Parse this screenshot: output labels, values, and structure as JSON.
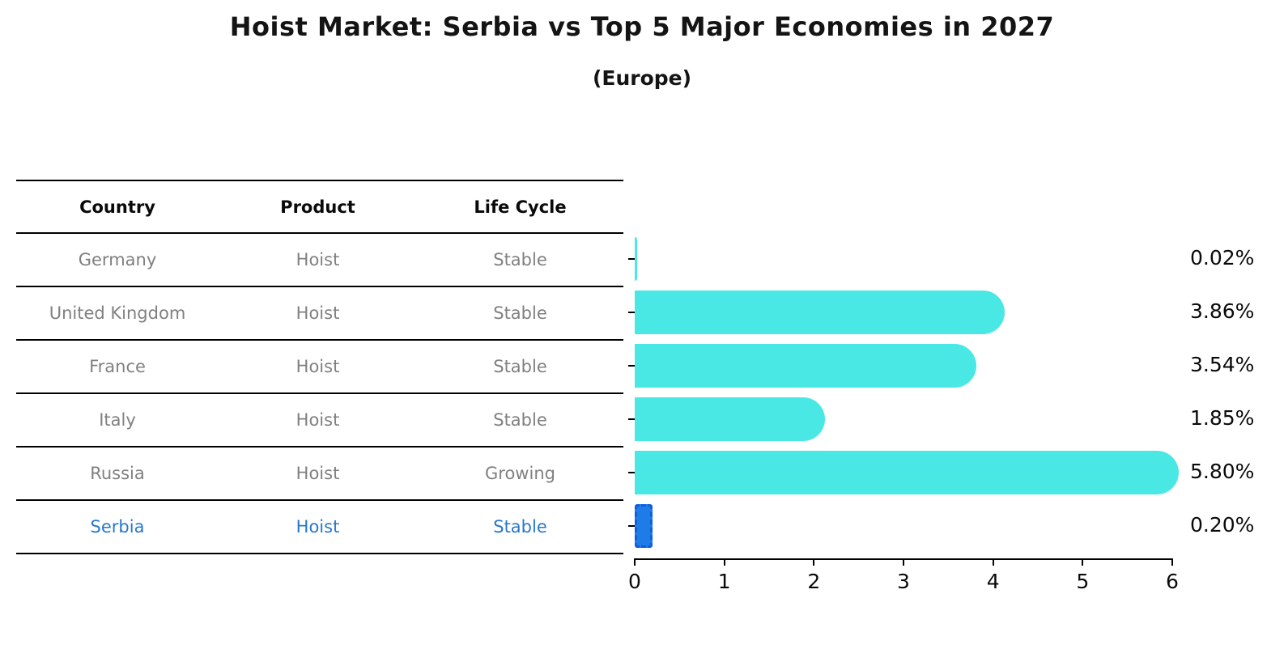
{
  "page": {
    "title": "Hoist Market: Serbia vs Top 5 Major Economies in 2027",
    "subtitle": "(Europe)"
  },
  "table": {
    "headers": [
      "Country",
      "Product",
      "Life Cycle"
    ],
    "rows": [
      {
        "country": "Germany",
        "product": "Hoist",
        "life_cycle": "Stable",
        "highlight": false
      },
      {
        "country": "United Kingdom",
        "product": "Hoist",
        "life_cycle": "Stable",
        "highlight": false
      },
      {
        "country": "France",
        "product": "Hoist",
        "life_cycle": "Stable",
        "highlight": false
      },
      {
        "country": "Italy",
        "product": "Hoist",
        "life_cycle": "Stable",
        "highlight": false
      },
      {
        "country": "Russia",
        "product": "Hoist",
        "life_cycle": "Growing",
        "highlight": false
      },
      {
        "country": "Serbia",
        "product": "Hoist",
        "life_cycle": "Stable",
        "highlight": true
      }
    ]
  },
  "chart_data": {
    "type": "bar",
    "orientation": "horizontal",
    "title": "Hoist Market: Serbia vs Top 5 Major Economies in 2027",
    "subtitle": "(Europe)",
    "categories": [
      "Germany",
      "United Kingdom",
      "France",
      "Italy",
      "Russia",
      "Serbia"
    ],
    "values": [
      0.02,
      3.86,
      3.54,
      1.85,
      5.8,
      0.2
    ],
    "value_labels": [
      "0.02%",
      "3.86%",
      "3.54%",
      "1.85%",
      "5.80%",
      "0.20%"
    ],
    "xlim": [
      0,
      6
    ],
    "x_ticks": [
      0,
      1,
      2,
      3,
      4,
      5,
      6
    ],
    "xlabel": "",
    "ylabel": "",
    "grid": false,
    "legend": false,
    "bar_color": "#4ae8e4",
    "highlight_index": 5,
    "highlight_color": "#1e7be8"
  },
  "colors": {
    "row_text": "#808080",
    "highlight_text": "#2878c9",
    "bar": "#4ae8e4",
    "highlight_bar": "#1e7be8",
    "axis": "#000000"
  }
}
